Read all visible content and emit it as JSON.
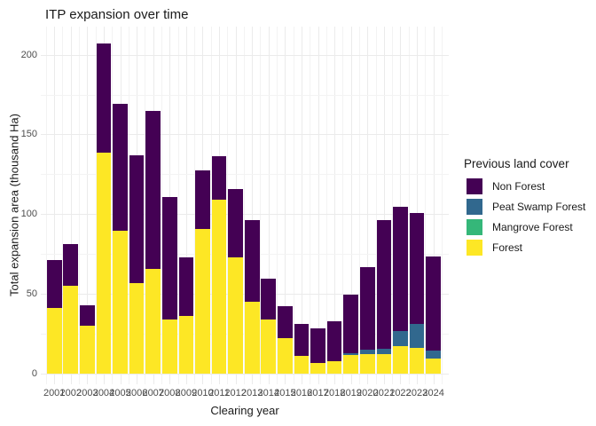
{
  "title": "ITP expansion over time",
  "axes": {
    "xlabel": "Clearing year",
    "ylabel": "Total expansion area (thousand Ha)",
    "y_major_ticks": [
      0,
      50,
      100,
      150,
      200
    ],
    "y_minor_ticks": [
      25,
      75,
      125,
      175
    ]
  },
  "legend": {
    "title": "Previous land cover",
    "items": [
      {
        "label": "Non Forest",
        "color": "#440154"
      },
      {
        "label": "Peat Swamp Forest",
        "color": "#31688E"
      },
      {
        "label": "Mangrove Forest",
        "color": "#35B779"
      },
      {
        "label": "Forest",
        "color": "#FDE725"
      }
    ]
  },
  "chart_data": {
    "type": "bar",
    "stacked": true,
    "title": "ITP expansion over time",
    "xlabel": "Clearing year",
    "ylabel": "Total expansion area (thousand Ha)",
    "ylim": [
      0,
      210
    ],
    "grid": true,
    "legend_position": "right",
    "legend_title": "Previous land cover",
    "categories": [
      2001,
      2002,
      2003,
      2004,
      2005,
      2006,
      2007,
      2008,
      2009,
      2010,
      2011,
      2012,
      2013,
      2014,
      2015,
      2016,
      2017,
      2018,
      2019,
      2020,
      2021,
      2022,
      2023,
      2024
    ],
    "series": [
      {
        "name": "Forest",
        "color": "#FDE725",
        "values": [
          41,
          55,
          30,
          138.5,
          89.5,
          57,
          65.5,
          34,
          36,
          90.5,
          109,
          73,
          45,
          34,
          22,
          11,
          6.5,
          8,
          11.5,
          12,
          12,
          17,
          16,
          9.5
        ]
      },
      {
        "name": "Mangrove Forest",
        "color": "#35B779",
        "values": [
          0,
          0,
          0,
          0,
          0,
          0,
          0,
          0,
          0,
          0,
          0,
          0,
          0,
          0,
          0,
          0,
          0,
          0,
          0,
          0,
          0,
          0,
          0,
          0
        ]
      },
      {
        "name": "Peat Swamp Forest",
        "color": "#31688E",
        "values": [
          0,
          0,
          0,
          0,
          0,
          0,
          0,
          0,
          0,
          0,
          0,
          0,
          0,
          0,
          0,
          0,
          0,
          0,
          1.5,
          3,
          3.5,
          9.5,
          15,
          5
        ]
      },
      {
        "name": "Non Forest",
        "color": "#440154",
        "values": [
          30,
          26.5,
          13,
          68.5,
          79.5,
          80,
          99,
          77,
          37,
          37,
          27.5,
          42.5,
          51,
          25.5,
          20.5,
          20,
          22,
          25,
          36.5,
          51.5,
          80.5,
          78,
          69.5,
          59
        ]
      }
    ]
  }
}
